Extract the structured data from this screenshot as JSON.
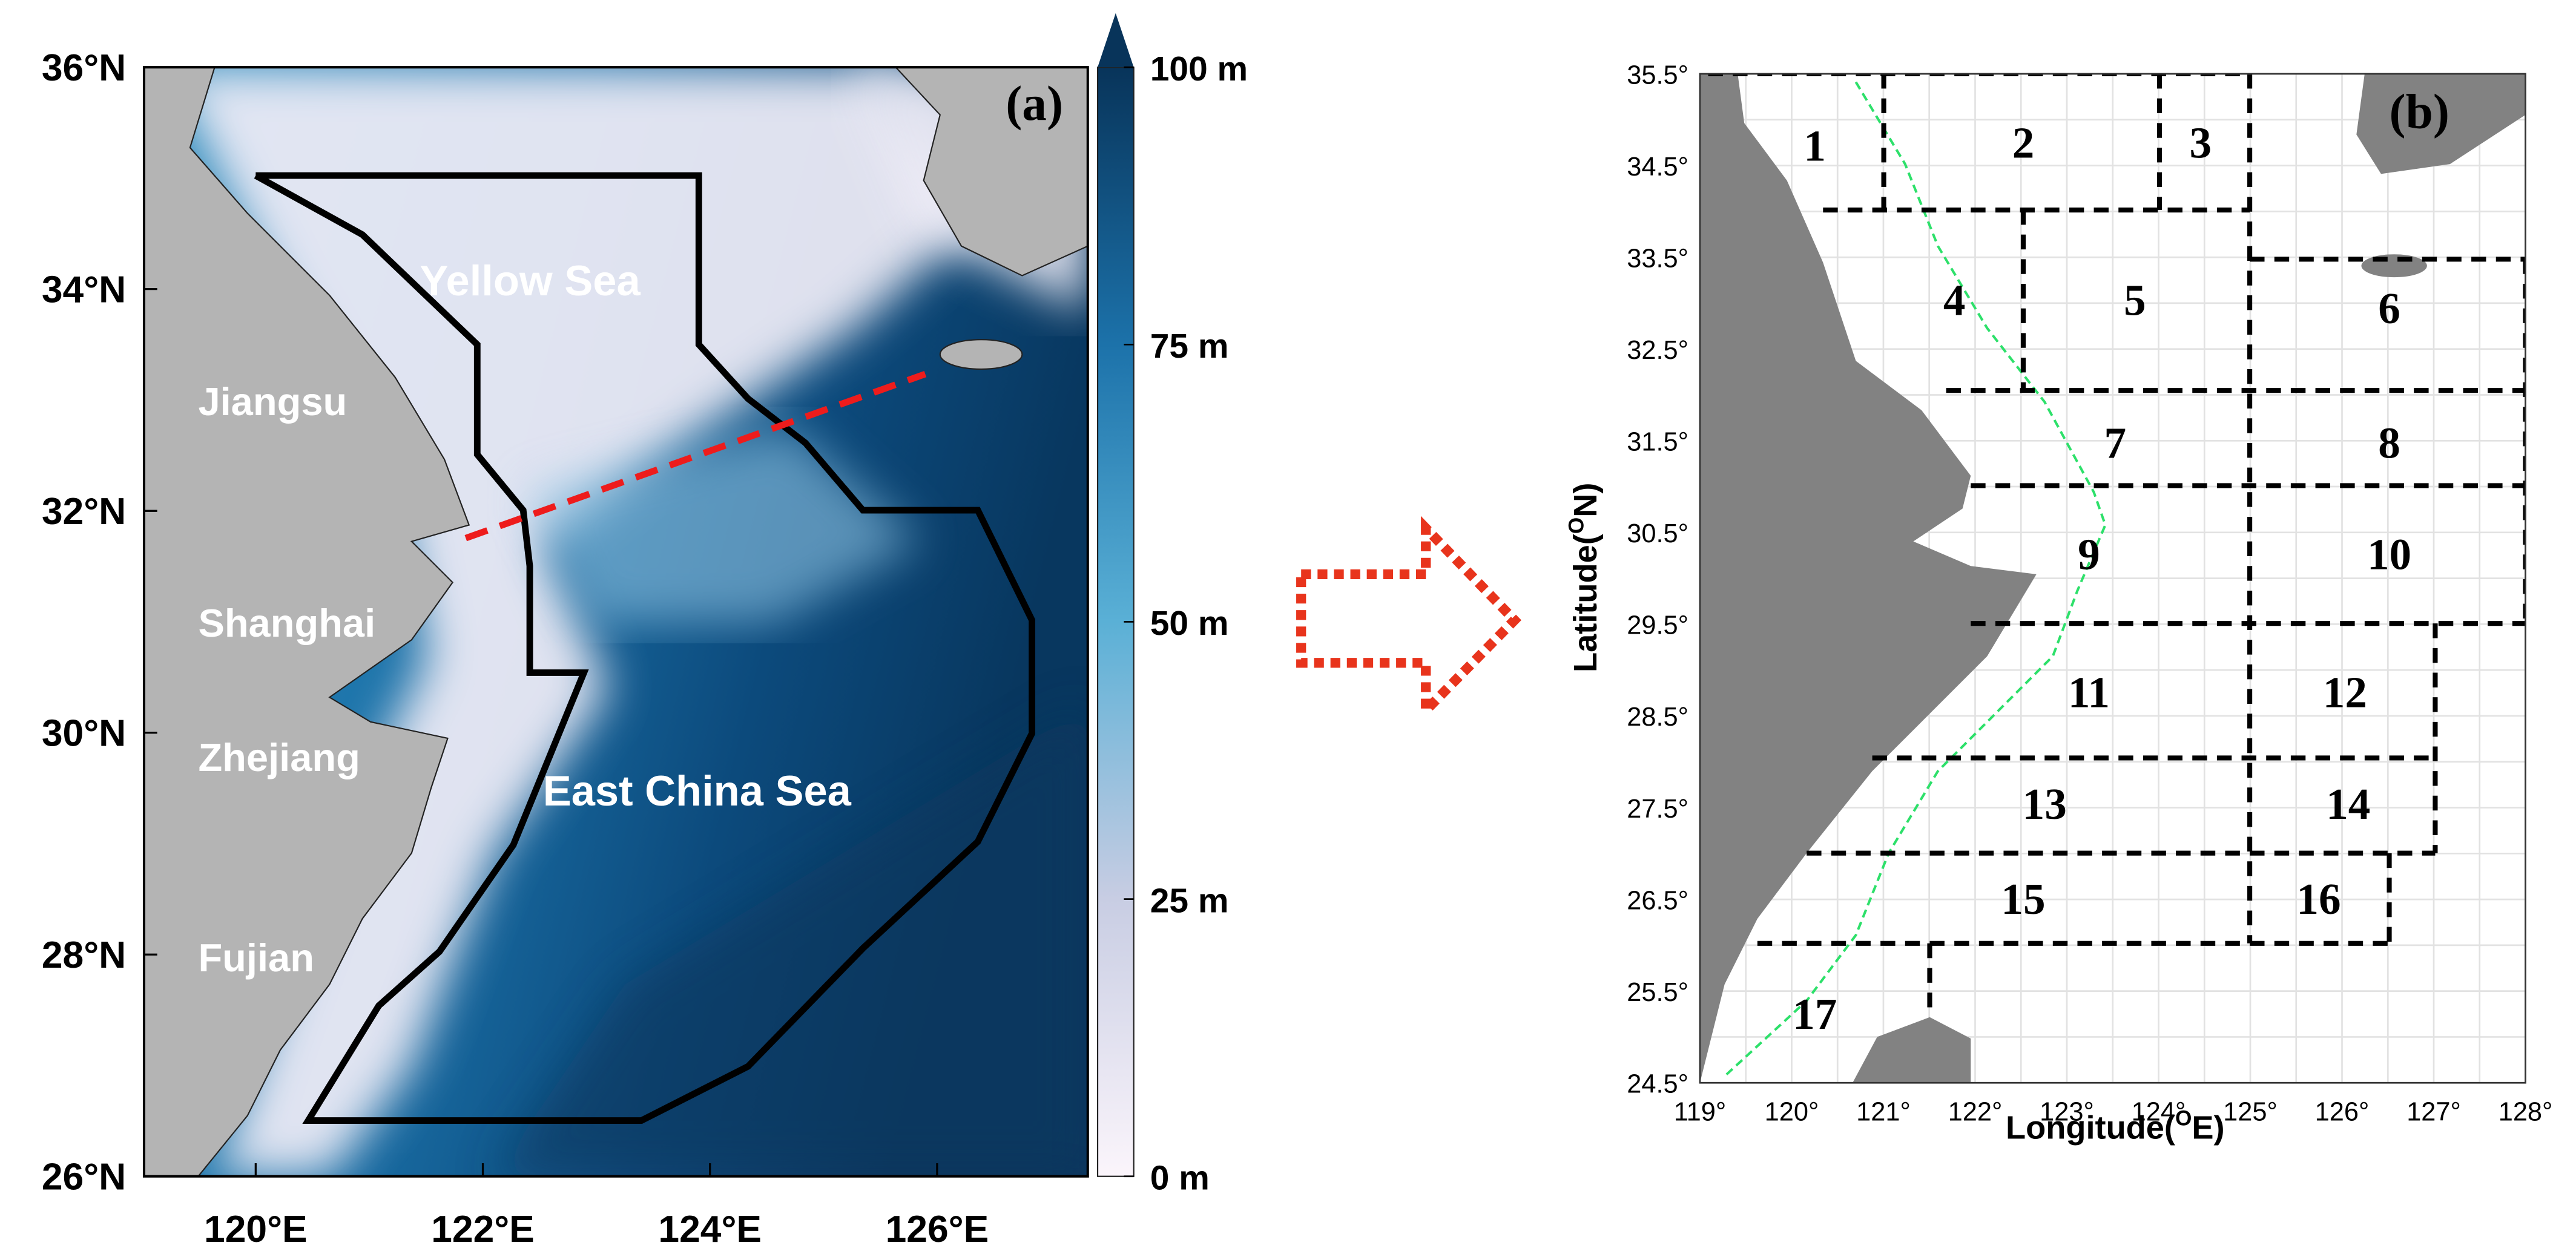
{
  "panel_a": {
    "label": "(a)",
    "yticks": [
      "26°N",
      "28°N",
      "30°N",
      "32°N",
      "34°N",
      "36°N"
    ],
    "xticks": [
      "120°E",
      "122°E",
      "124°E",
      "126°E"
    ],
    "colorbar_ticks": [
      "0 m",
      "25 m",
      "50 m",
      "75 m",
      "100 m"
    ],
    "provinces": [
      "Jiangsu",
      "Shanghai",
      "Zhejiang",
      "Fujian"
    ],
    "seas": [
      "Yellow Sea",
      "East China Sea"
    ]
  },
  "panel_b": {
    "label": "(b)",
    "xticks": [
      "119°",
      "120°",
      "121°",
      "122°",
      "123°",
      "124°",
      "125°",
      "126°",
      "127°",
      "128°"
    ],
    "yticks": [
      "24.5°",
      "25.5°",
      "26.5°",
      "27.5°",
      "28.5°",
      "29.5°",
      "30.5°",
      "31.5°",
      "32.5°",
      "33.5°",
      "34.5°",
      "35.5°"
    ],
    "xlabel": {
      "text": "Longitude(",
      "sup": "O",
      "unit": "E)"
    },
    "ylabel": {
      "text": "Latitude(",
      "sup": "O",
      "unit": "N)"
    },
    "boxes": [
      "1",
      "2",
      "3",
      "4",
      "5",
      "6",
      "7",
      "8",
      "9",
      "10",
      "11",
      "12",
      "13",
      "14",
      "15",
      "16",
      "17"
    ]
  }
}
